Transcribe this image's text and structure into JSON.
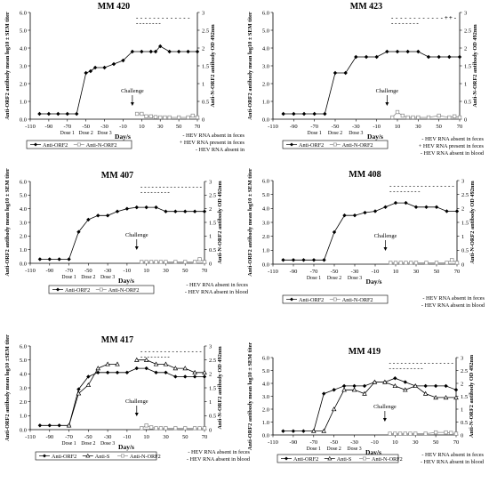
{
  "figure": {
    "x_axis_label": "Day/s",
    "x_ticks": [
      -110,
      -90,
      -70,
      -50,
      -30,
      -10,
      10,
      30,
      50,
      70
    ],
    "y_left_ticks": [
      0.0,
      1.0,
      2.0,
      3.0,
      4.0,
      5.0,
      6.0
    ],
    "y_right_ticks": [
      0,
      0.5,
      1,
      1.5,
      2,
      2.5,
      3
    ],
    "dose_labels": [
      "Dose 1",
      "Dose 2",
      "Dose 3"
    ],
    "challenge_label": "Challenge",
    "colors": {
      "ink": "#000000",
      "grey": "#888888"
    }
  },
  "chart_data": [
    {
      "type": "line",
      "title": "MM 420",
      "ylabel": "Anti-ORF2 antibody mean log10 ± SEM titer",
      "y2label": "Anti-N-ORF2 antibody OD 492nm",
      "xlim": [
        -110,
        70
      ],
      "ylim": [
        0,
        6
      ],
      "y2lim": [
        0,
        3
      ],
      "series": [
        {
          "name": "Anti-ORF2",
          "axis": "left",
          "marker": "filled-diamond",
          "x": [
            -100,
            -90,
            -80,
            -70,
            -60,
            -50,
            -45,
            -40,
            -30,
            -20,
            -10,
            0,
            10,
            20,
            25,
            30,
            40,
            50,
            60,
            70
          ],
          "values": [
            0.3,
            0.3,
            0.3,
            0.3,
            0.3,
            2.6,
            2.7,
            2.9,
            2.9,
            3.1,
            3.3,
            3.8,
            3.8,
            3.8,
            3.8,
            4.1,
            3.8,
            3.8,
            3.8,
            3.8
          ]
        },
        {
          "name": "Anti-N-ORF2",
          "axis": "right",
          "marker": "open-square",
          "x": [
            5,
            10,
            15,
            20,
            25,
            30,
            35,
            40,
            50,
            60,
            65,
            70
          ],
          "values": [
            0.15,
            0.15,
            0.08,
            0.08,
            0.06,
            0.05,
            0.05,
            0.05,
            0.05,
            0.05,
            0.1,
            0.05
          ]
        }
      ],
      "rna_rows": [
        {
          "marks": [
            "-",
            "-",
            "-",
            "-",
            "-",
            "-",
            "-",
            "-",
            "-",
            "-",
            "-",
            "-",
            "-"
          ]
        },
        {
          "marks": [
            "-",
            "-",
            "-",
            "-",
            "-",
            "-",
            "-",
            "-"
          ]
        }
      ],
      "legend_entries": [
        "Anti-ORF2",
        "Anti-N-ORF2"
      ],
      "notes": [
        "- HEV RNA absent in feces",
        "+ HEV RNA present in feces",
        "- HEV RNA absent in"
      ]
    },
    {
      "type": "line",
      "title": "MM 423",
      "ylabel": "Anti-ORF2 antibody mean log10 ± SEM titer",
      "y2label": "Anti-N-ORF2 antibody OD 492nm",
      "xlim": [
        -110,
        70
      ],
      "ylim": [
        0,
        6
      ],
      "y2lim": [
        0,
        3
      ],
      "series": [
        {
          "name": "Anti-ORF2",
          "axis": "left",
          "marker": "filled-diamond",
          "x": [
            -100,
            -90,
            -80,
            -70,
            -60,
            -50,
            -40,
            -30,
            -20,
            -10,
            0,
            10,
            20,
            30,
            40,
            50,
            60,
            70
          ],
          "values": [
            0.3,
            0.3,
            0.3,
            0.3,
            0.3,
            2.6,
            2.6,
            3.5,
            3.5,
            3.5,
            3.8,
            3.8,
            3.8,
            3.8,
            3.5,
            3.5,
            3.5,
            3.5
          ]
        },
        {
          "name": "Anti-N-ORF2",
          "axis": "right",
          "marker": "open-square",
          "x": [
            5,
            10,
            15,
            20,
            25,
            30,
            40,
            50,
            60,
            65,
            70
          ],
          "values": [
            0.05,
            0.2,
            0.1,
            0.05,
            0.05,
            0.05,
            0.05,
            0.1,
            0.05,
            0.08,
            0.05
          ]
        }
      ],
      "rna_rows": [
        {
          "marks": [
            "-",
            "-",
            "-",
            "-",
            "-",
            "-",
            "-",
            "-",
            "-",
            "-",
            "-",
            "-",
            "+",
            "+",
            "-"
          ]
        },
        {
          "marks": [
            "-",
            "-",
            "-",
            "-",
            "-",
            "-",
            "-",
            "-"
          ]
        }
      ],
      "legend_entries": [
        "Anti-ORF2",
        "Anti-N-ORF2"
      ],
      "notes": [
        "- HEV RNA absent in feces",
        "+ HEV RNA present in feces",
        "- HEV RNA absent in blood"
      ]
    },
    {
      "type": "line",
      "title": "MM 407",
      "ylabel": "Anti-ORF2 antibody mean log10 ± SEM titer",
      "y2label": "Anti-N-ORF2 antibody OD 492nm",
      "xlim": [
        -110,
        70
      ],
      "ylim": [
        0,
        6
      ],
      "y2lim": [
        0,
        3
      ],
      "series": [
        {
          "name": "Anti-ORF2",
          "axis": "left",
          "marker": "filled-diamond",
          "x": [
            -100,
            -90,
            -80,
            -70,
            -60,
            -50,
            -40,
            -30,
            -20,
            -10,
            0,
            10,
            20,
            30,
            40,
            50,
            60,
            70
          ],
          "values": [
            0.3,
            0.3,
            0.3,
            0.3,
            2.3,
            3.2,
            3.5,
            3.5,
            3.8,
            4.0,
            4.1,
            4.1,
            4.1,
            3.8,
            3.8,
            3.8,
            3.8,
            3.8
          ]
        },
        {
          "name": "Anti-N-ORF2",
          "axis": "right",
          "marker": "open-square",
          "x": [
            5,
            10,
            15,
            20,
            25,
            30,
            40,
            50,
            60,
            65,
            70
          ],
          "values": [
            0.05,
            0.05,
            0.05,
            0.05,
            0.05,
            0.05,
            0.05,
            0.05,
            0.05,
            0.15,
            0.05
          ]
        }
      ],
      "rna_rows": [
        {
          "marks": [
            "-",
            "-",
            "-",
            "-",
            "-",
            "-",
            "-",
            "-",
            "-",
            "-",
            "-",
            "-",
            "-",
            "-",
            "-",
            "-",
            "-"
          ]
        },
        {
          "marks": [
            "-",
            "-",
            "-",
            "-",
            "-",
            "-",
            "-",
            "-",
            "-"
          ]
        }
      ],
      "legend_entries": [
        "Anti-ORF2",
        "Anti-N-ORF2"
      ],
      "notes": [
        "- HEV RNA absent in feces",
        "- HEV RNA absent in blood"
      ]
    },
    {
      "type": "line",
      "title": "MM 408",
      "ylabel": "Anti-ORF2 antibody mean log10 ± SEM titer",
      "y2label": "Anti-N-ORF2 antibody OD 492nm",
      "xlim": [
        -110,
        70
      ],
      "ylim": [
        0,
        6
      ],
      "y2lim": [
        0,
        3
      ],
      "series": [
        {
          "name": "Anti-ORF2",
          "axis": "left",
          "marker": "filled-diamond",
          "x": [
            -100,
            -90,
            -80,
            -70,
            -60,
            -50,
            -40,
            -30,
            -20,
            -10,
            0,
            10,
            20,
            30,
            40,
            50,
            60,
            70
          ],
          "values": [
            0.3,
            0.3,
            0.3,
            0.3,
            0.3,
            2.3,
            3.5,
            3.5,
            3.7,
            3.8,
            4.1,
            4.4,
            4.4,
            4.1,
            4.1,
            4.1,
            3.8,
            3.8
          ]
        },
        {
          "name": "Anti-N-ORF2",
          "axis": "right",
          "marker": "open-square",
          "x": [
            5,
            10,
            15,
            20,
            25,
            30,
            40,
            50,
            60,
            65,
            70
          ],
          "values": [
            0.05,
            0.05,
            0.05,
            0.05,
            0.05,
            0.05,
            0.05,
            0.05,
            0.05,
            0.15,
            0.05
          ]
        }
      ],
      "rna_rows": [
        {
          "marks": [
            "-",
            "-",
            "-",
            "-",
            "-",
            "-",
            "-",
            "-",
            "-",
            "-",
            "-",
            "-",
            "-",
            "-",
            "-",
            "-",
            "-"
          ]
        },
        {
          "marks": [
            "-",
            "-",
            "-",
            "-",
            "-",
            "-",
            "-",
            "-",
            "-"
          ]
        }
      ],
      "legend_entries": [
        "Anti-ORF2",
        "Anti-N-ORF2"
      ],
      "notes": [
        "- HEV RNA absent in feces",
        "- HEV RNA absent in blood"
      ]
    },
    {
      "type": "line",
      "title": "MM 417",
      "ylabel": "Anti-ORF2 antibody mean log10 ±SEM titer",
      "y2label": "Anti-N-ORF2 antibody OD 492nm",
      "xlim": [
        -110,
        70
      ],
      "ylim": [
        0,
        6
      ],
      "y2lim": [
        0,
        3
      ],
      "series": [
        {
          "name": "Anti-ORF2",
          "axis": "left",
          "marker": "filled-diamond",
          "x": [
            -100,
            -90,
            -80,
            -70,
            -60,
            -50,
            -40,
            -30,
            -20,
            -10,
            0,
            10,
            20,
            30,
            40,
            50,
            60,
            70
          ],
          "values": [
            0.3,
            0.3,
            0.3,
            0.3,
            2.9,
            3.8,
            4.1,
            4.1,
            4.1,
            4.1,
            4.4,
            4.4,
            4.1,
            4.1,
            3.8,
            3.8,
            3.8,
            3.8
          ]
        },
        {
          "name": "Anti-S",
          "axis": "left",
          "marker": "open-triangle",
          "x": [
            -70,
            -60,
            -50,
            -40,
            -30,
            -20,
            -10,
            0,
            10,
            20,
            30,
            40,
            50,
            60,
            70
          ],
          "values": [
            0.3,
            2.6,
            3.2,
            4.4,
            4.7,
            4.7,
            null,
            5.0,
            5.0,
            4.7,
            4.7,
            4.4,
            4.4,
            4.1,
            4.1
          ]
        },
        {
          "name": "Anti-N-ORF2",
          "axis": "right",
          "marker": "open-square",
          "x": [
            5,
            10,
            15,
            20,
            25,
            30,
            40,
            50,
            60,
            65,
            70
          ],
          "values": [
            0.05,
            0.15,
            0.08,
            0.05,
            0.05,
            0.05,
            0.05,
            0.05,
            0.05,
            0.05,
            0.05
          ]
        }
      ],
      "rna_rows": [
        {
          "marks": [
            "-",
            "-",
            "-",
            "-",
            "-",
            "-",
            "-",
            "-",
            "-",
            "-",
            "-",
            "-",
            "-",
            "-",
            "-",
            "-"
          ]
        },
        {
          "marks": [
            "-",
            "-",
            "-",
            "-",
            "-",
            "-",
            "-",
            "-",
            "-"
          ]
        }
      ],
      "legend_entries": [
        "Anti-ORF2",
        "Anti-S",
        "Anti-N-ORF2"
      ],
      "notes": [
        "- HEV RNA absent in feces",
        "- HEV RNA absent in blood"
      ]
    },
    {
      "type": "line",
      "title": "MM 419",
      "ylabel": "Anti-ORF2 antibody mean log10 ± SEM titer",
      "y2label": "Anti-N-ORF2 antibody OD 492nm",
      "xlim": [
        -110,
        70
      ],
      "ylim": [
        0,
        6
      ],
      "y2lim": [
        0,
        3
      ],
      "series": [
        {
          "name": "Anti-ORF2",
          "axis": "left",
          "marker": "filled-diamond",
          "x": [
            -100,
            -90,
            -80,
            -70,
            -60,
            -50,
            -40,
            -30,
            -20,
            -10,
            0,
            10,
            20,
            30,
            40,
            50,
            60,
            70
          ],
          "values": [
            0.3,
            0.3,
            0.3,
            0.3,
            3.2,
            3.5,
            3.8,
            3.8,
            3.8,
            4.1,
            4.1,
            4.4,
            4.1,
            3.8,
            3.8,
            3.8,
            3.8,
            3.5
          ]
        },
        {
          "name": "Anti-S",
          "axis": "left",
          "marker": "open-triangle",
          "x": [
            -70,
            -60,
            -50,
            -40,
            -30,
            -20,
            -10,
            0,
            10,
            20,
            30,
            40,
            50,
            60,
            70
          ],
          "values": [
            0.3,
            0.3,
            2.0,
            3.5,
            3.5,
            3.2,
            4.1,
            4.1,
            3.8,
            3.5,
            3.8,
            3.2,
            2.9,
            2.9,
            2.9
          ]
        },
        {
          "name": "Anti-N-ORF2",
          "axis": "right",
          "marker": "open-square",
          "x": [
            5,
            10,
            15,
            20,
            25,
            30,
            40,
            50,
            60,
            65,
            70
          ],
          "values": [
            0.05,
            0.05,
            0.05,
            0.05,
            0.05,
            0.05,
            0.05,
            0.1,
            0.1,
            0.08,
            0.05
          ]
        }
      ],
      "rna_rows": [
        {
          "marks": [
            "-",
            "-",
            "-",
            "-",
            "-",
            "-",
            "-",
            "-",
            "-",
            "-",
            "-",
            "-",
            "-",
            "-",
            "-",
            "-",
            "-"
          ]
        },
        {
          "marks": [
            "-",
            "-",
            "-",
            "-",
            "-",
            "-",
            "-",
            "-",
            "-",
            "-"
          ]
        }
      ],
      "legend_entries": [
        "Anti-ORF2",
        "Anti-S",
        "Anti-N-ORF2"
      ],
      "notes": [
        "- HEV RNA absent in feces",
        "- HEV RNA absent in blood"
      ]
    }
  ]
}
